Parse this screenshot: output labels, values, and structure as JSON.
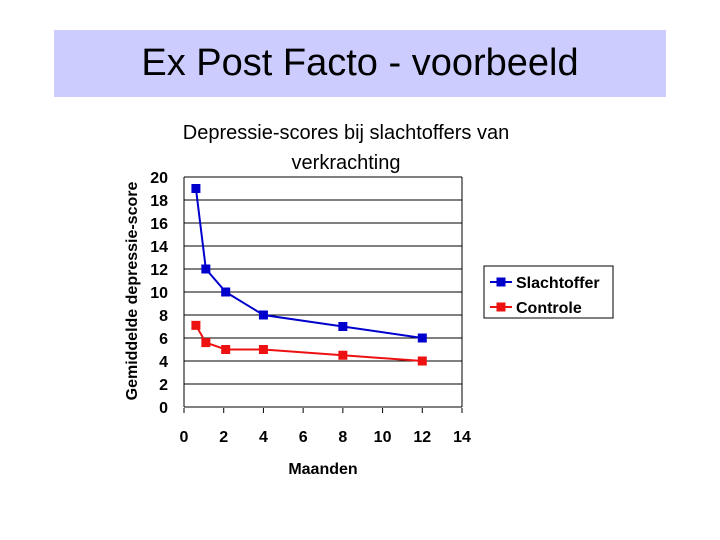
{
  "slide": {
    "title": "Ex Post Facto - voorbeeld"
  },
  "chart_data": {
    "type": "line",
    "title": "Depressie-scores bij slachtoffers van verkrachting",
    "title_lines": [
      "Depressie-scores bij slachtoffers van",
      "verkrachting"
    ],
    "xlabel": "Maanden",
    "ylabel": "Gemiddelde depressie-score",
    "xlim": [
      0,
      14
    ],
    "ylim": [
      0,
      20
    ],
    "x_ticks": [
      0,
      2,
      4,
      6,
      8,
      10,
      12,
      14
    ],
    "y_ticks": [
      0,
      2,
      4,
      6,
      8,
      10,
      12,
      14,
      16,
      18,
      20
    ],
    "grid": "horizontal",
    "legend_position": "right",
    "series": [
      {
        "name": "Slachtoffer",
        "color": "#0000cc",
        "x": [
          0.6,
          1.1,
          2.1,
          4.0,
          8.0,
          12.0
        ],
        "y": [
          19,
          12,
          10,
          8,
          7,
          6
        ]
      },
      {
        "name": "Controle",
        "color": "#ee1111",
        "x": [
          0.6,
          1.1,
          2.1,
          4.0,
          8.0,
          12.0
        ],
        "y": [
          7.1,
          5.6,
          5.0,
          5.0,
          4.5,
          4.0
        ]
      }
    ]
  }
}
